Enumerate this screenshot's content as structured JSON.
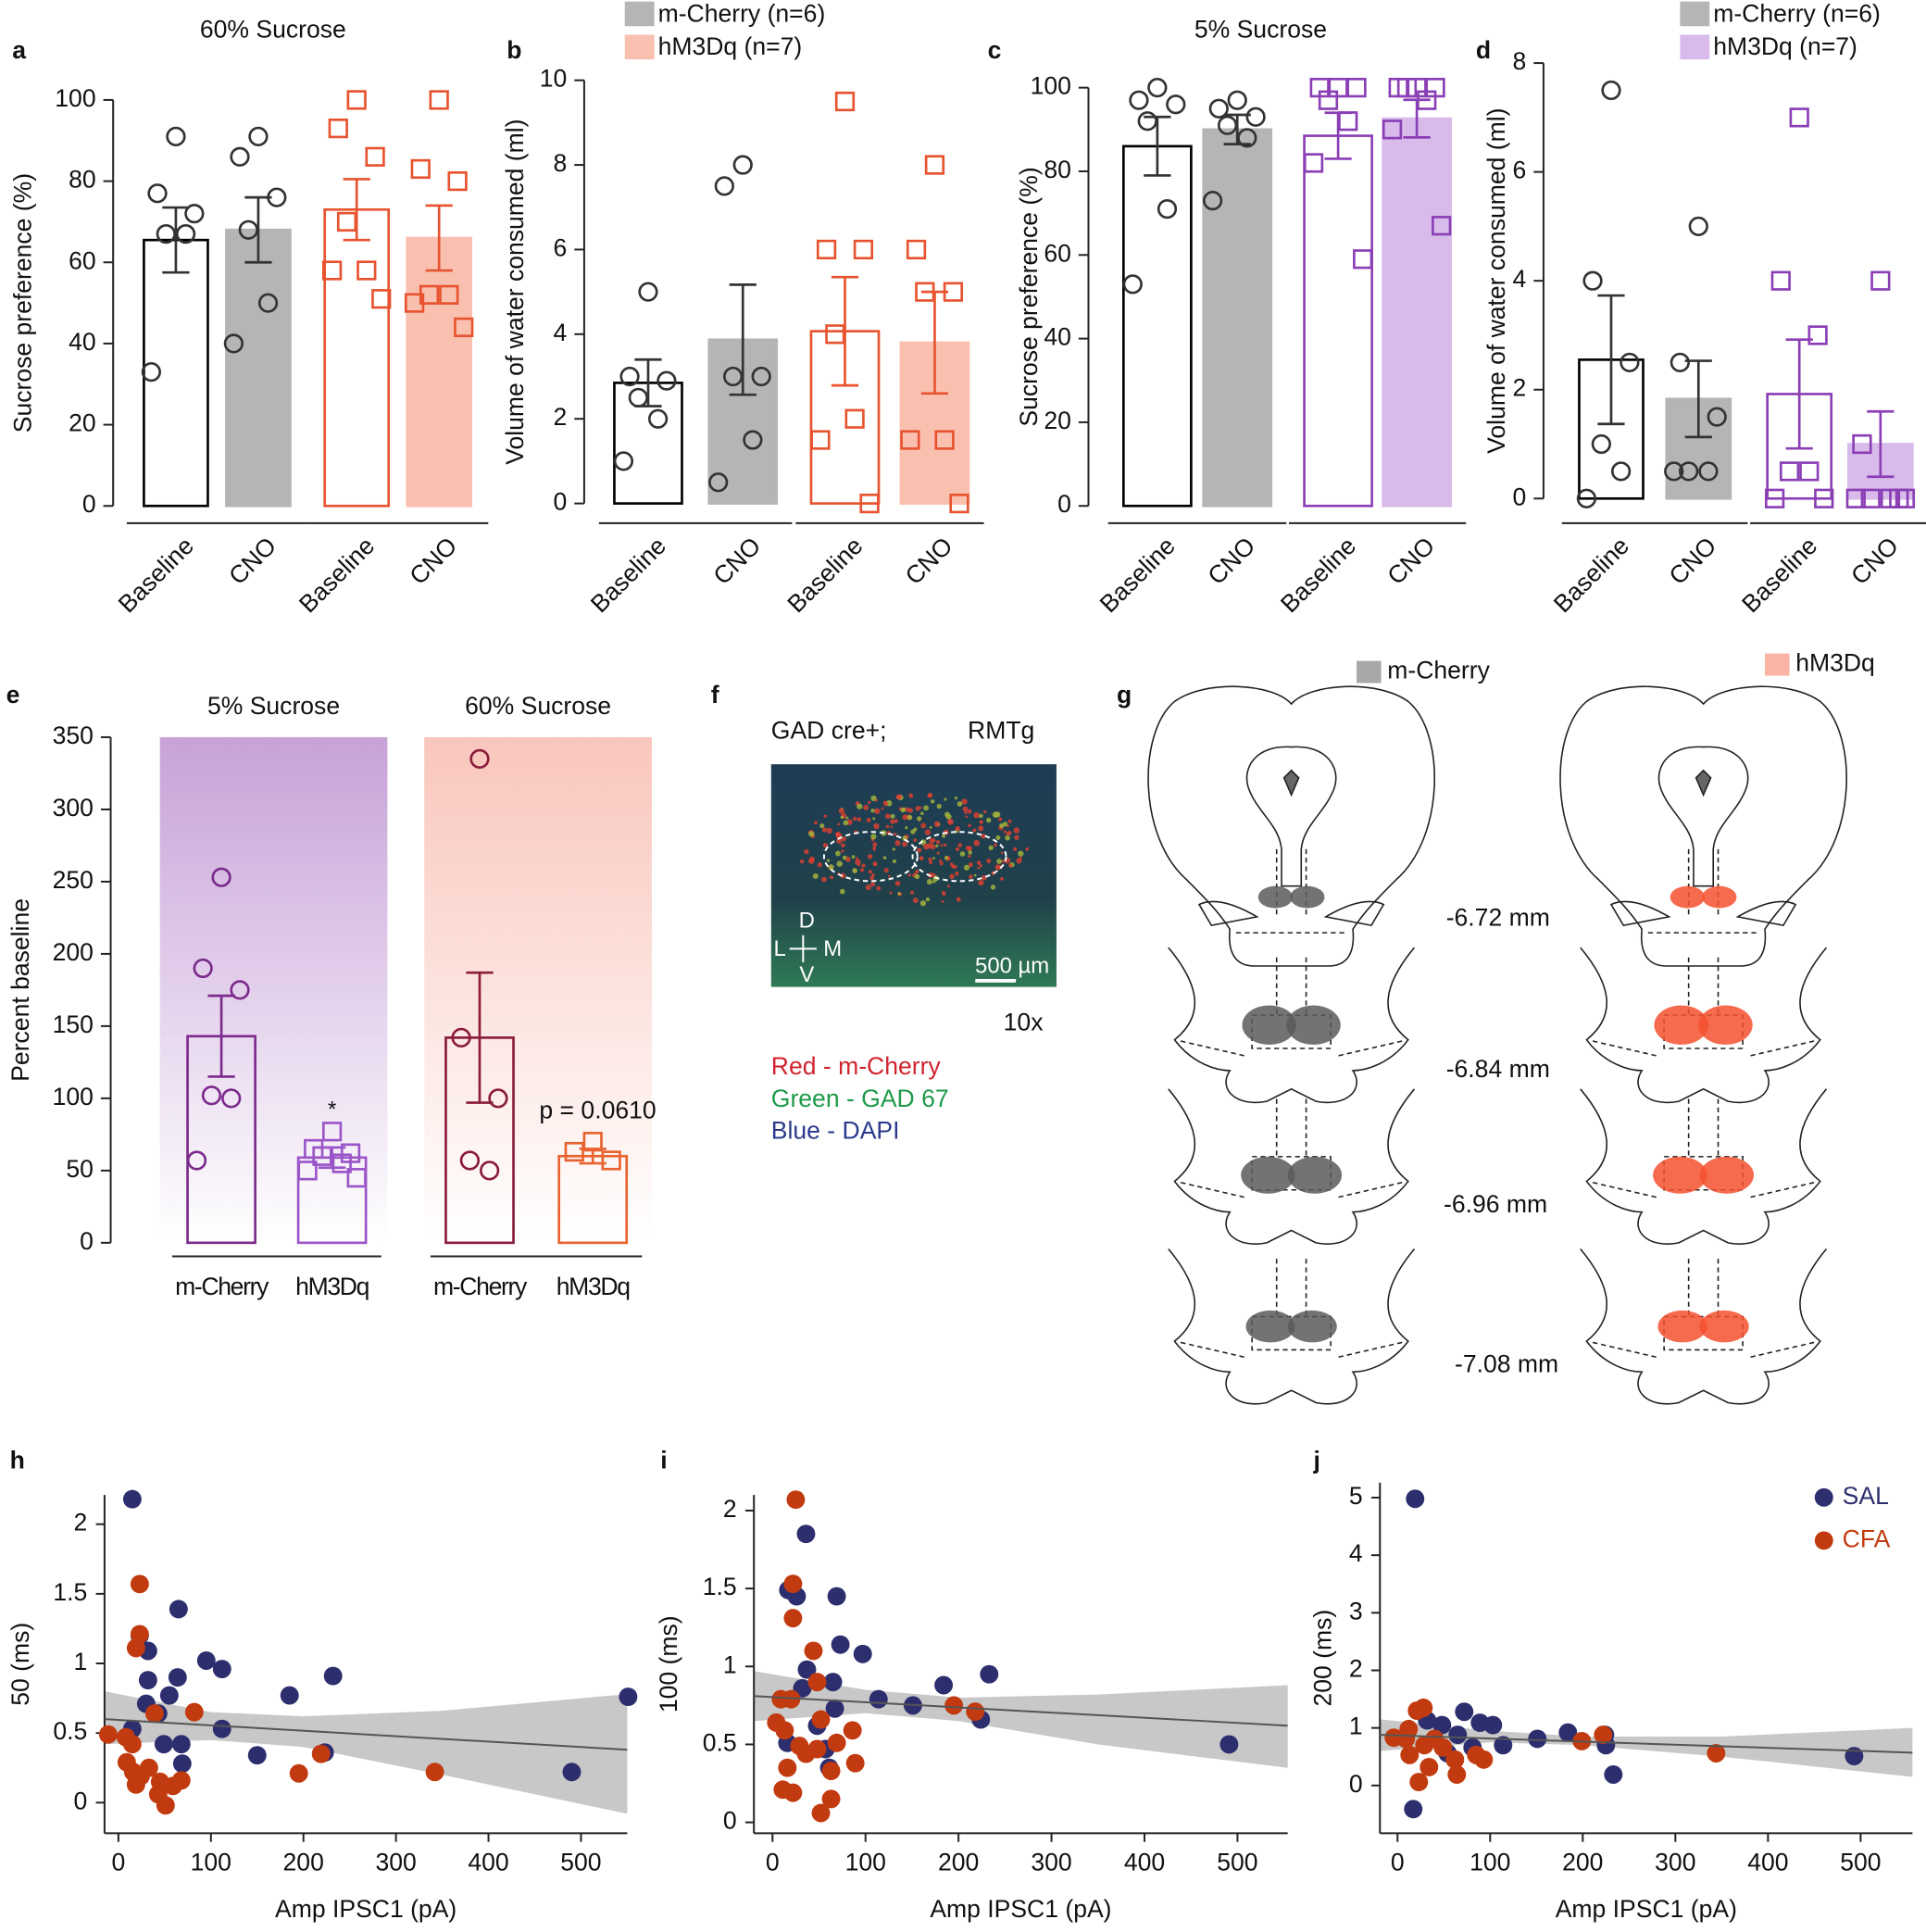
{
  "chart_data": [
    {
      "type": "bar",
      "label": "a",
      "title": "60% Sucrose",
      "ylabel": "Sucrose  preference (%)",
      "ylim": [
        0,
        100
      ],
      "yticks": [
        0,
        20,
        40,
        60,
        80,
        100
      ],
      "categories": [
        "Baseline",
        "CNO",
        "Baseline",
        "CNO"
      ],
      "bars": [
        {
          "value": 65.5,
          "error": 8,
          "fill": "#ffffff",
          "stroke": "#000000",
          "marker": "circle",
          "point_color": "#333333",
          "points": [
            91,
            77,
            72,
            67,
            67,
            33
          ]
        },
        {
          "value": 68,
          "error": 8,
          "fill": "#b5b5b5",
          "stroke": "#b5b5b5",
          "marker": "circle",
          "point_color": "#333333",
          "points": [
            91,
            86,
            76,
            68,
            50,
            40
          ]
        },
        {
          "value": 73,
          "error": 7.5,
          "fill": "#ffffff",
          "stroke": "#e8532f",
          "marker": "square",
          "point_color": "#e8532f",
          "points": [
            100,
            93,
            86,
            70,
            58,
            58,
            51
          ]
        },
        {
          "value": 66,
          "error": 8,
          "fill": "#f9c0b0",
          "stroke": "#f9c0b0",
          "marker": "square",
          "point_color": "#e8532f",
          "points": [
            100,
            83,
            80,
            52,
            52,
            50,
            44
          ]
        }
      ]
    },
    {
      "type": "bar",
      "label": "b",
      "ylabel": "Volume of water consumed (ml)",
      "ylim": [
        0,
        10
      ],
      "yticks": [
        0,
        2,
        4,
        6,
        8,
        10
      ],
      "categories": [
        "Baseline",
        "CNO",
        "Baseline",
        "CNO"
      ],
      "legend": [
        {
          "name": "m-Cherry (n=6)",
          "color": "#b5b5b5"
        },
        {
          "name": "hM3Dq (n=7)",
          "color": "#f9c0b0"
        }
      ],
      "bars": [
        {
          "value": 2.85,
          "error": 0.55,
          "fill": "#ffffff",
          "stroke": "#000000",
          "marker": "circle",
          "point_color": "#333333",
          "points": [
            5,
            3,
            2.9,
            2.5,
            2,
            1
          ]
        },
        {
          "value": 3.87,
          "error": 1.3,
          "fill": "#b5b5b5",
          "stroke": "#b5b5b5",
          "marker": "circle",
          "point_color": "#333333",
          "points": [
            8,
            7.5,
            3,
            3,
            1.5,
            0.5
          ]
        },
        {
          "value": 4.07,
          "error": 1.28,
          "fill": "#ffffff",
          "stroke": "#e8532f",
          "marker": "square",
          "point_color": "#e8532f",
          "points": [
            9.5,
            6,
            6,
            4,
            2,
            1.5,
            0
          ]
        },
        {
          "value": 3.8,
          "error": 1.2,
          "fill": "#f9c0b0",
          "stroke": "#f9c0b0",
          "marker": "square",
          "point_color": "#e8532f",
          "points": [
            8,
            6,
            5,
            5,
            1.5,
            1.5,
            0
          ]
        }
      ]
    },
    {
      "type": "bar",
      "label": "c",
      "title": "5% Sucrose",
      "ylabel": "Sucrose  preference (%)",
      "ylim": [
        0,
        100
      ],
      "yticks": [
        0,
        20,
        40,
        60,
        80,
        100
      ],
      "categories": [
        "Baseline",
        "CNO",
        "Baseline",
        "CNO"
      ],
      "bars": [
        {
          "value": 86,
          "error": 7,
          "fill": "#ffffff",
          "stroke": "#000000",
          "marker": "circle",
          "point_color": "#333333",
          "points": [
            100,
            97,
            96,
            92,
            71,
            53
          ]
        },
        {
          "value": 90,
          "error": 3.5,
          "fill": "#b5b5b5",
          "stroke": "#b5b5b5",
          "marker": "circle",
          "point_color": "#333333",
          "points": [
            97,
            95,
            93,
            91,
            88,
            73
          ]
        },
        {
          "value": 88.5,
          "error": 5.5,
          "fill": "#ffffff",
          "stroke": "#8a3fb5",
          "marker": "square",
          "point_color": "#8a3fb5",
          "points": [
            100,
            100,
            100,
            97,
            92,
            82,
            59
          ]
        },
        {
          "value": 92.6,
          "error": 4.5,
          "fill": "#d8bbea",
          "stroke": "#d8bbea",
          "marker": "square",
          "point_color": "#8a3fb5",
          "points": [
            100,
            100,
            100,
            100,
            97,
            90,
            67
          ]
        }
      ]
    },
    {
      "type": "bar",
      "label": "d",
      "ylabel": "Volume of water consumed (ml)",
      "ylim": [
        0,
        8
      ],
      "yticks": [
        0,
        2,
        4,
        6,
        8
      ],
      "categories": [
        "Baseline",
        "CNO",
        "Baseline",
        "CNO"
      ],
      "legend": [
        {
          "name": "m-Cherry (n=6)",
          "color": "#b5b5b5"
        },
        {
          "name": "hM3Dq (n=7)",
          "color": "#d8bbea"
        }
      ],
      "bars": [
        {
          "value": 2.55,
          "error": 1.18,
          "fill": "#ffffff",
          "stroke": "#000000",
          "marker": "circle",
          "point_color": "#333333",
          "points": [
            7.5,
            4,
            2.5,
            1,
            0.5,
            0
          ]
        },
        {
          "value": 1.83,
          "error": 0.7,
          "fill": "#b5b5b5",
          "stroke": "#b5b5b5",
          "marker": "circle",
          "point_color": "#333333",
          "points": [
            5,
            2.5,
            1.5,
            0.5,
            0.5,
            0.5
          ]
        },
        {
          "value": 1.92,
          "error": 1,
          "fill": "#ffffff",
          "stroke": "#8a3fb5",
          "marker": "square",
          "point_color": "#8a3fb5",
          "points": [
            7,
            4,
            3,
            0.5,
            0.5,
            0,
            0
          ]
        },
        {
          "value": 1,
          "error": 0.6,
          "fill": "#d8bbea",
          "stroke": "#d8bbea",
          "marker": "square",
          "point_color": "#8a3fb5",
          "points": [
            4,
            1,
            0,
            0,
            0,
            0,
            0
          ]
        }
      ]
    },
    {
      "type": "bar",
      "label": "e",
      "ylabel": "Percent baseline",
      "ylim": [
        0,
        350
      ],
      "yticks": [
        0,
        50,
        100,
        150,
        200,
        250,
        300,
        350
      ],
      "groups": [
        "5% Sucrose",
        "60% Sucrose"
      ],
      "group_colors": [
        "#c7a2d8",
        "#f9c6bc"
      ],
      "categories": [
        "m-Cherry",
        "hM3Dq",
        "m-Cherry",
        "hM3Dq"
      ],
      "bars": [
        {
          "value": 143,
          "error": 28,
          "fill": "none",
          "stroke": "#7b2a8c",
          "marker": "circle",
          "point_color": "#7b2a8c",
          "points": [
            253,
            190,
            175,
            102,
            100,
            57
          ]
        },
        {
          "value": 59,
          "error": 7,
          "fill": "none",
          "stroke": "#9a55c8",
          "marker": "square",
          "point_color": "#9a55c8",
          "points": [
            77,
            65,
            62,
            60,
            55,
            50,
            45
          ],
          "annotation": "*"
        },
        {
          "value": 142,
          "error": 45,
          "fill": "none",
          "stroke": "#8a1c3a",
          "marker": "circle",
          "point_color": "#8a1c3a",
          "points": [
            335,
            142,
            100,
            57,
            50
          ]
        },
        {
          "value": 60,
          "error": 5,
          "fill": "none",
          "stroke": "#e8632f",
          "marker": "square",
          "point_color": "#e8632f",
          "points": [
            70,
            63,
            57
          ],
          "annotation": "p = 0.0610"
        }
      ]
    },
    {
      "type": "scatter",
      "label": "h",
      "ylabel": "50 (ms)",
      "xlabel": "Amp IPSC1 (pA)",
      "xlim": [
        -15,
        550
      ],
      "ylim": [
        -0.22,
        2.21
      ],
      "xticks": [
        0,
        100,
        200,
        300,
        400,
        500
      ],
      "yticks": [
        0,
        0.5,
        1,
        1.5,
        2
      ],
      "series": [
        {
          "name": "SAL",
          "color": "#2d2e6e",
          "x": [
            15,
            65,
            23,
            32,
            95,
            112,
            64,
            32,
            232,
            185,
            30,
            43,
            55,
            112,
            15,
            68,
            49,
            150,
            223,
            69,
            490,
            551
          ],
          "y": [
            2.18,
            1.39,
            1.2,
            1.09,
            1.02,
            0.96,
            0.9,
            0.88,
            0.91,
            0.77,
            0.71,
            0.64,
            0.77,
            0.53,
            0.53,
            0.42,
            0.42,
            0.34,
            0.36,
            0.28,
            0.22,
            0.76
          ]
        },
        {
          "name": "CFA",
          "color": "#c23b10",
          "x": [
            23,
            23,
            19,
            -11,
            8,
            15,
            82,
            39,
            9,
            16,
            24,
            33,
            19,
            45,
            43,
            51,
            59,
            68,
            195,
            219,
            342
          ],
          "y": [
            1.57,
            1.21,
            1.11,
            0.49,
            0.47,
            0.42,
            0.65,
            0.64,
            0.29,
            0.22,
            0.19,
            0.25,
            0.13,
            0.15,
            0.06,
            -0.02,
            0.12,
            0.16,
            0.21,
            0.35,
            0.22
          ]
        }
      ],
      "fit": {
        "x": [
          -15,
          550
        ],
        "y": [
          0.6,
          0.38
        ]
      },
      "band": {
        "x": [
          -15,
          100,
          200,
          350,
          550
        ],
        "lower": [
          0.42,
          0.45,
          0.4,
          0.2,
          -0.08
        ],
        "upper": [
          0.8,
          0.65,
          0.62,
          0.66,
          0.78
        ]
      }
    },
    {
      "type": "scatter",
      "label": "i",
      "ylabel": "100 (ms)",
      "xlabel": "Amp IPSC1 (pA)",
      "xlim": [
        -20,
        554
      ],
      "ylim": [
        -0.07,
        2.1
      ],
      "xticks": [
        0,
        100,
        200,
        300,
        400,
        500
      ],
      "yticks": [
        0,
        0.5,
        1,
        1.5,
        2
      ],
      "series": [
        {
          "name": "SAL",
          "color": "#2d2e6e",
          "x": [
            36,
            17,
            26,
            69,
            73,
            97,
            37,
            65,
            32,
            184,
            233,
            114,
            151,
            67,
            224,
            16,
            48,
            57,
            61,
            491
          ],
          "y": [
            1.85,
            1.49,
            1.45,
            1.45,
            1.14,
            1.08,
            0.98,
            0.9,
            0.86,
            0.88,
            0.95,
            0.79,
            0.75,
            0.73,
            0.66,
            0.51,
            0.62,
            0.47,
            0.35,
            0.5
          ]
        },
        {
          "name": "CFA",
          "color": "#c23b10",
          "x": [
            25,
            22,
            22,
            44,
            9,
            20,
            48,
            52,
            4,
            13,
            29,
            36,
            48,
            86,
            69,
            89,
            16,
            11,
            22,
            63,
            63,
            52,
            195,
            218
          ],
          "y": [
            2.07,
            1.53,
            1.31,
            1.1,
            0.79,
            0.79,
            0.9,
            0.66,
            0.64,
            0.59,
            0.49,
            0.44,
            0.47,
            0.59,
            0.51,
            0.38,
            0.35,
            0.21,
            0.19,
            0.33,
            0.15,
            0.06,
            0.75,
            0.71
          ]
        }
      ],
      "fit": {
        "x": [
          -20,
          554
        ],
        "y": [
          0.81,
          0.62
        ]
      },
      "band": {
        "x": [
          -20,
          100,
          200,
          350,
          554
        ],
        "lower": [
          0.65,
          0.7,
          0.65,
          0.5,
          0.35
        ],
        "upper": [
          0.97,
          0.85,
          0.8,
          0.82,
          0.88
        ]
      }
    },
    {
      "type": "scatter",
      "label": "j",
      "ylabel": "200 (ms)",
      "xlabel": "Amp IPSC1 (pA)",
      "xlim": [
        -19,
        556
      ],
      "ylim": [
        -0.83,
        5.26
      ],
      "xticks": [
        0,
        100,
        200,
        300,
        400,
        500
      ],
      "yticks": [
        0,
        1,
        2,
        3,
        4,
        5
      ],
      "legend": "top right",
      "series": [
        {
          "name": "SAL",
          "color": "#2d2e6e",
          "x": [
            19,
            17,
            32,
            48,
            72,
            89,
            103,
            114,
            151,
            224,
            225,
            184,
            233,
            493,
            65,
            81,
            54
          ],
          "y": [
            4.98,
            -0.41,
            1.13,
            1.05,
            1.28,
            1.09,
            1.05,
            0.7,
            0.81,
            0.88,
            0.7,
            0.92,
            0.19,
            0.51,
            0.88,
            0.66,
            0.56
          ]
        },
        {
          "name": "CFA",
          "color": "#c23b10",
          "x": [
            21,
            28,
            -4,
            9,
            13,
            29,
            40,
            49,
            23,
            34,
            62,
            64,
            85,
            93,
            199,
            222,
            344,
            12
          ],
          "y": [
            1.3,
            1.35,
            0.83,
            0.81,
            0.53,
            0.7,
            0.81,
            0.66,
            0.06,
            0.32,
            0.45,
            0.19,
            0.53,
            0.45,
            0.77,
            0.88,
            0.56,
            0.98
          ]
        }
      ],
      "fit": {
        "x": [
          -19,
          556
        ],
        "y": [
          0.88,
          0.57
        ]
      },
      "band": {
        "x": [
          -19,
          100,
          200,
          350,
          556
        ],
        "lower": [
          0.6,
          0.75,
          0.7,
          0.5,
          0.15
        ],
        "upper": [
          1.15,
          0.95,
          0.85,
          0.85,
          1.0
        ]
      }
    }
  ],
  "panel_f": {
    "label": "f",
    "title_left": "GAD cre+;",
    "title_right": "RMTg",
    "dir_d": "D",
    "dir_l": "L",
    "dir_m": "M",
    "dir_v": "V",
    "scale_bar": "500 µm",
    "magnification": "10x",
    "channels": [
      {
        "text": "Red - m-Cherry",
        "color": "#d0252f"
      },
      {
        "text": "Green - GAD 67",
        "color": "#1e9a4a"
      },
      {
        "text": "Blue - DAPI",
        "color": "#2b3a8c"
      }
    ]
  },
  "panel_g": {
    "label": "g",
    "legend": [
      {
        "name": "m-Cherry",
        "color": "#a8a8a8",
        "mark_color": "#5a5a5a"
      },
      {
        "name": "hM3Dq",
        "color": "#f9b4a4",
        "mark_color": "#f4502e"
      }
    ],
    "levels": [
      "-6.72 mm",
      "-6.84 mm",
      "-6.96 mm",
      "-7.08 mm"
    ]
  }
}
